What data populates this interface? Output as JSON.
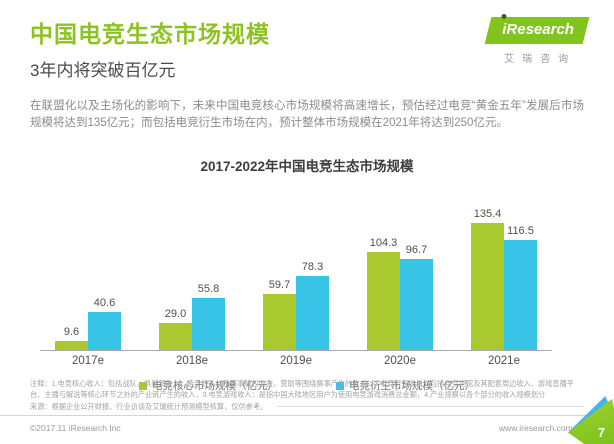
{
  "header": {
    "title": "中国电竞生态市场规模",
    "subtitle": "3年内将突破百亿元",
    "logo": {
      "brand": "iResearch",
      "brand_cn": "艾瑞咨询"
    }
  },
  "intro": {
    "text": "在联盟化以及主场化的影响下，未来中国电竞核心市场规模将高速增长，预估经过电竞“黄金五年”发展后市场规模将达到135亿元；而包括电竞衍生市场在内，预计整体市场规模在2021年将达到250亿元。"
  },
  "chart_data": {
    "type": "bar",
    "title": "2017-2022年中国电竞生态市场规模",
    "categories": [
      "2017e",
      "2018e",
      "2019e",
      "2020e",
      "2021e"
    ],
    "series": [
      {
        "name": "电竞核心市场规模（亿元）",
        "color": "#aac92e",
        "values": [
          9.6,
          29.0,
          59.7,
          104.3,
          135.4
        ]
      },
      {
        "name": "电竞衍生市场规模（亿元）",
        "color": "#38c4e6",
        "values": [
          40.6,
          55.8,
          78.3,
          96.7,
          116.5
        ]
      }
    ],
    "ylim": [
      0,
      150
    ],
    "grid": false,
    "legend_position": "bottom",
    "value_labels": true
  },
  "notes": {
    "note": "注释：1.电竞核心收入：包括战队、俱乐部收入、选手收入以及赛事版权收益，赞助等围绕赛事产生的收入，2.电竞衍生收入：包括电竞场馆及其配套周边收入、游戏直播平台、主播与解说等核心环节之外的产业链产生的收入，3.电竞游戏收入：是指中国大陆地区用户为使用电竞游戏消费总金额，4.产业规模以各个部分的收入规模划分",
    "source": "来源：根据企业公开财报、行业访谈及艾瑞统计预测模型核算，仅供参考。"
  },
  "footer": {
    "copyright": "©2017.11 iResearch Inc",
    "website": "www.iresearch.com.cn",
    "page_number": "7"
  },
  "colors": {
    "brand_green": "#8cc320",
    "bar_green": "#aac92e",
    "bar_blue": "#38c4e6"
  }
}
